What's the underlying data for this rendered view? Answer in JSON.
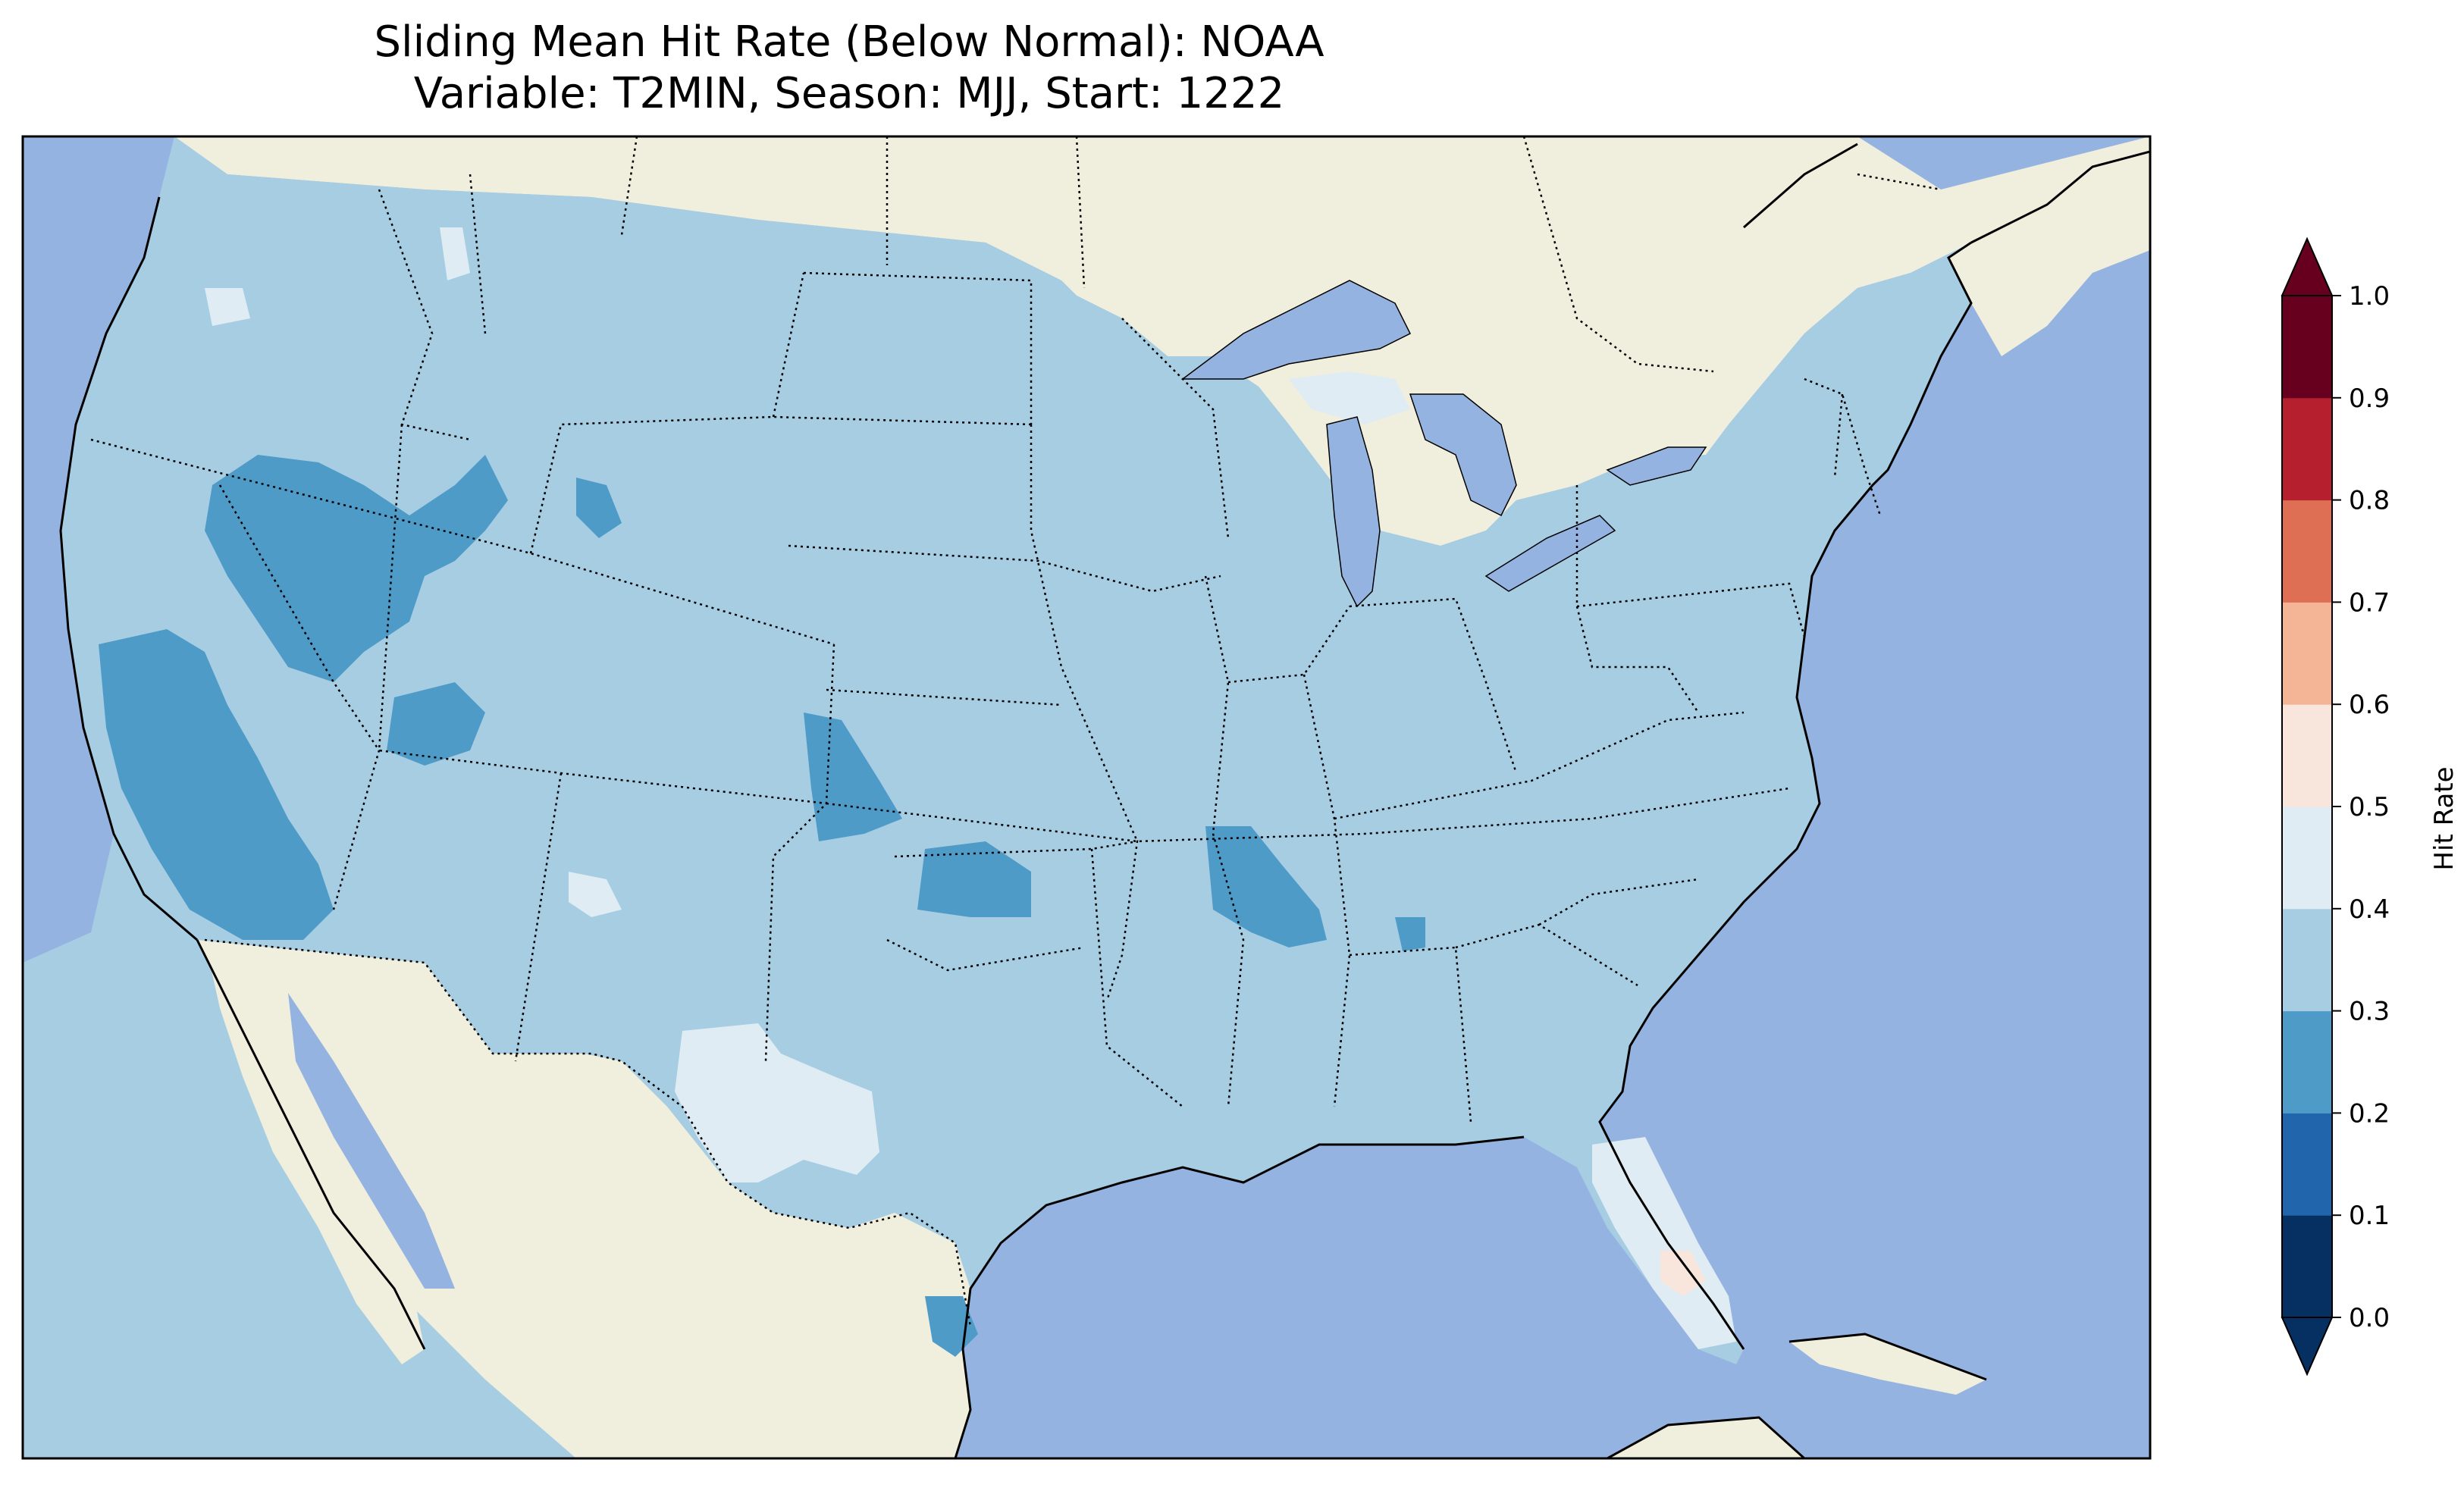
{
  "title": {
    "line1": "Sliding Mean Hit Rate (Below Normal): NOAA",
    "line2": "Variable: T2MIN, Season: MJJ, Start: 1222"
  },
  "colors": {
    "ocean": "#95b3e0",
    "land": "#f0eedc",
    "lakes": "#95b3e0",
    "border": "#000000"
  },
  "colorbar": {
    "label": "Hit Rate",
    "ticks": [
      "0.0",
      "0.1",
      "0.2",
      "0.3",
      "0.4",
      "0.5",
      "0.6",
      "0.7",
      "0.8",
      "0.9",
      "1.0"
    ],
    "bins": [
      {
        "range": [
          0.0,
          0.1
        ],
        "color": "#053061"
      },
      {
        "range": [
          0.1,
          0.2
        ],
        "color": "#2166ac"
      },
      {
        "range": [
          0.2,
          0.3
        ],
        "color": "#4f9bc8"
      },
      {
        "range": [
          0.3,
          0.4
        ],
        "color": "#a7cde3"
      },
      {
        "range": [
          0.4,
          0.5
        ],
        "color": "#e0ecf3"
      },
      {
        "range": [
          0.5,
          0.6
        ],
        "color": "#f8e5dc"
      },
      {
        "range": [
          0.6,
          0.7
        ],
        "color": "#f4b597"
      },
      {
        "range": [
          0.7,
          0.8
        ],
        "color": "#de6f55"
      },
      {
        "range": [
          0.8,
          0.9
        ],
        "color": "#b51f2e"
      },
      {
        "range": [
          0.9,
          1.0
        ],
        "color": "#67001f"
      }
    ],
    "extend": "both"
  },
  "map_data": {
    "projection": "PlateCarree",
    "extent_lon": [
      -125,
      -66
    ],
    "extent_lat": [
      24,
      50
    ],
    "predominant_hit_rate_bin": [
      0.3,
      0.4
    ],
    "regions": [
      {
        "name": "Great Basin / Nevada–Utah–Idaho",
        "bin": [
          0.2,
          0.3
        ]
      },
      {
        "name": "Central / Southern California",
        "bin": [
          0.2,
          0.3
        ]
      },
      {
        "name": "Western Kansas",
        "bin": [
          0.2,
          0.3
        ]
      },
      {
        "name": "Central Oklahoma",
        "bin": [
          0.2,
          0.3
        ]
      },
      {
        "name": "Eastern Arkansas / Bootheel",
        "bin": [
          0.2,
          0.3
        ]
      },
      {
        "name": "Southern Texas tip",
        "bin": [
          0.2,
          0.3
        ]
      },
      {
        "name": "West Texas / Trans-Pecos",
        "bin": [
          0.4,
          0.5
        ]
      },
      {
        "name": "Florida Peninsula",
        "bin": [
          0.4,
          0.5
        ]
      },
      {
        "name": "Upper Michigan / Lake Michigan shore",
        "bin": [
          0.4,
          0.5
        ]
      },
      {
        "name": "Southern Florida interior",
        "bin": [
          0.5,
          0.6
        ]
      }
    ]
  }
}
